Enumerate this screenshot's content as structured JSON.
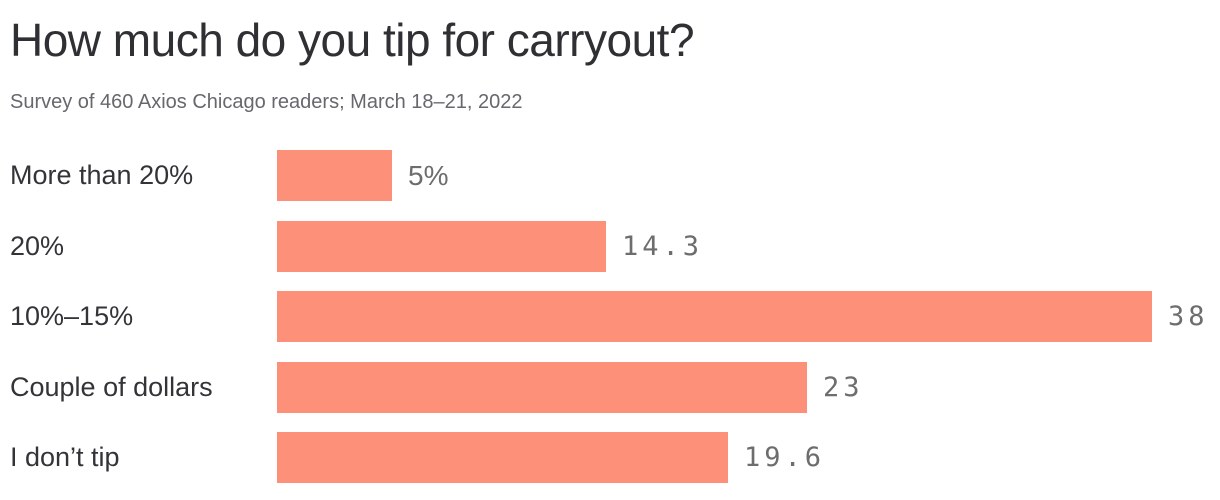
{
  "header": {
    "title": "How much do you tip for carryout?",
    "subtitle": "Survey of 460 Axios Chicago readers; March 18–21, 2022"
  },
  "chart_data": {
    "type": "bar",
    "orientation": "horizontal",
    "title": "How much do you tip for carryout?",
    "subtitle": "Survey of 460 Axios Chicago readers; March 18–21, 2022",
    "categories": [
      "More than 20%",
      "20%",
      "10%–15%",
      "Couple of dollars",
      "I don’t tip"
    ],
    "values": [
      5,
      14.3,
      38,
      23,
      19.6
    ],
    "value_labels": [
      "5%",
      "14.3",
      "38",
      "23",
      "19.6"
    ],
    "unit": "%",
    "xlim": [
      0,
      38
    ],
    "grid": false,
    "legend": "none",
    "colors": {
      "bar": "#fc9079",
      "title": "#2f3034",
      "subtitle": "#67676d",
      "category_label": "#333438",
      "value_label": "#6d6d6d",
      "background": "#ffffff"
    }
  }
}
